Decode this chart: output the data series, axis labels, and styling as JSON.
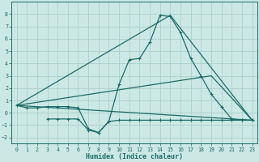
{
  "xlabel": "Humidex (Indice chaleur)",
  "background_color": "#cce8e4",
  "grid_color": "#aacfcc",
  "line_color": "#1a6b6b",
  "xlim": [
    -0.5,
    23.5
  ],
  "ylim": [
    -2.5,
    9.0
  ],
  "yticks": [
    -2,
    -1,
    0,
    1,
    2,
    3,
    4,
    5,
    6,
    7,
    8
  ],
  "xticks": [
    0,
    1,
    2,
    3,
    4,
    5,
    6,
    7,
    8,
    9,
    10,
    11,
    12,
    13,
    14,
    15,
    16,
    17,
    18,
    19,
    20,
    21,
    22,
    23
  ],
  "curve_x": [
    0,
    1,
    2,
    3,
    4,
    5,
    6,
    7,
    8,
    9,
    10,
    11,
    12,
    13,
    14,
    15,
    16,
    17,
    18,
    19,
    20,
    21,
    22,
    23
  ],
  "curve_y": [
    0.6,
    0.4,
    0.4,
    0.5,
    0.5,
    0.5,
    0.4,
    -1.3,
    -1.6,
    -0.7,
    2.3,
    4.3,
    4.4,
    5.7,
    7.9,
    7.8,
    6.5,
    4.4,
    3.0,
    1.5,
    0.5,
    -0.5,
    -0.6,
    -0.6
  ],
  "line1_x": [
    0,
    23
  ],
  "line1_y": [
    0.6,
    -0.6
  ],
  "line2_x": [
    0,
    15,
    23
  ],
  "line2_y": [
    0.6,
    7.9,
    -0.6
  ],
  "line3_x": [
    0,
    19,
    23
  ],
  "line3_y": [
    0.6,
    3.0,
    -0.6
  ],
  "bottom_x": [
    3,
    4,
    5,
    6,
    7,
    8,
    9,
    10,
    11,
    12,
    13,
    14,
    15,
    16,
    17,
    18,
    19,
    20,
    21,
    22,
    23
  ],
  "bottom_y": [
    -0.5,
    -0.5,
    -0.5,
    -0.5,
    -1.4,
    -1.6,
    -0.7,
    -0.6,
    -0.6,
    -0.6,
    -0.6,
    -0.6,
    -0.6,
    -0.6,
    -0.6,
    -0.6,
    -0.6,
    -0.6,
    -0.6,
    -0.6,
    -0.6
  ]
}
